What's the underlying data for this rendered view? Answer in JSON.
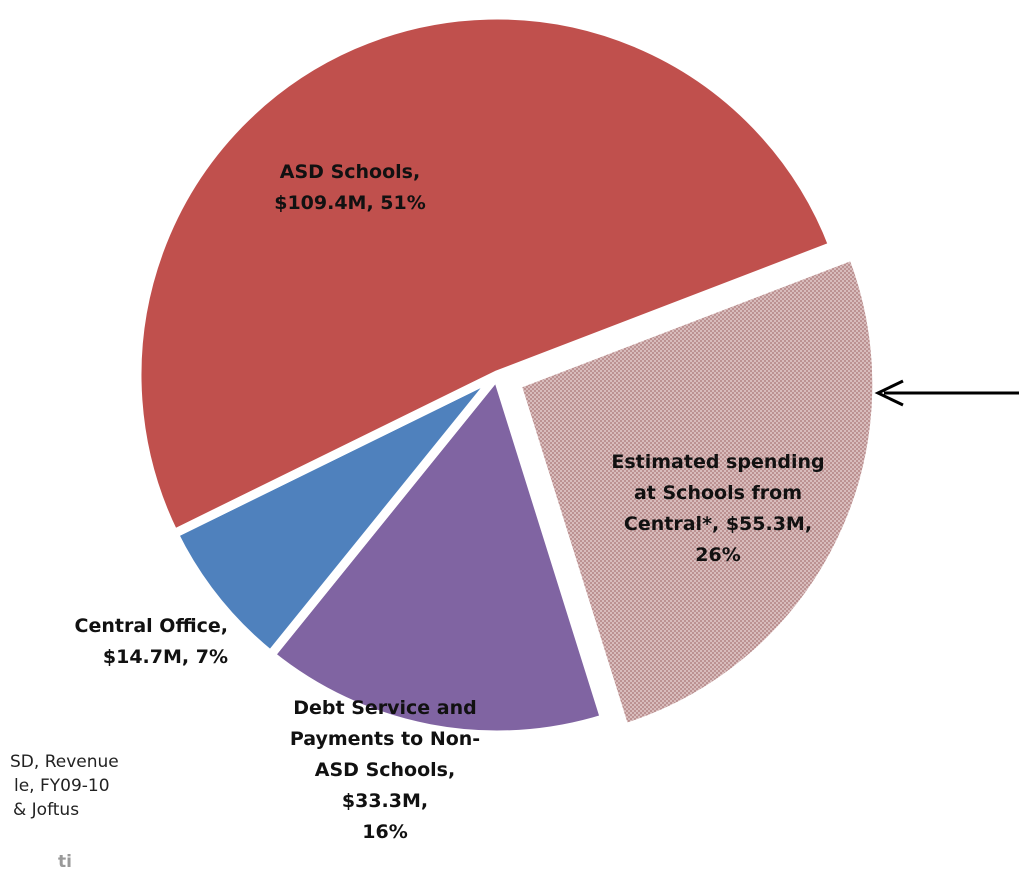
{
  "chart_data": {
    "type": "pie",
    "title": "",
    "slices": [
      {
        "label_lines": [
          "ASD Schools,",
          "$109.4M, 51%"
        ],
        "value": 109.4,
        "percent": 51,
        "color": "#c0504d",
        "pattern": "solid"
      },
      {
        "label_lines": [
          "Estimated spending",
          "at Schools from",
          "Central*, $55.3M,",
          "26%"
        ],
        "value": 55.3,
        "percent": 26,
        "color": "#c9a3a3",
        "pattern": "dotted",
        "exploded": true,
        "indicated_by_arrow": true
      },
      {
        "label_lines": [
          "Debt Service and",
          "Payments to Non-",
          "ASD Schools,",
          "$33.3M,",
          "16%"
        ],
        "value": 33.3,
        "percent": 16,
        "color": "#8064a2",
        "pattern": "solid"
      },
      {
        "label_lines": [
          "Central Office,",
          "$14.7M, 7%"
        ],
        "value": 14.7,
        "percent": 7,
        "color": "#4f81bd",
        "pattern": "solid"
      }
    ]
  },
  "source_note": {
    "lines": [
      "SD, Revenue",
      "le, FY09-10",
      "& Joftus"
    ],
    "fragment": "ti"
  },
  "arrow": {
    "color": "#000000"
  }
}
